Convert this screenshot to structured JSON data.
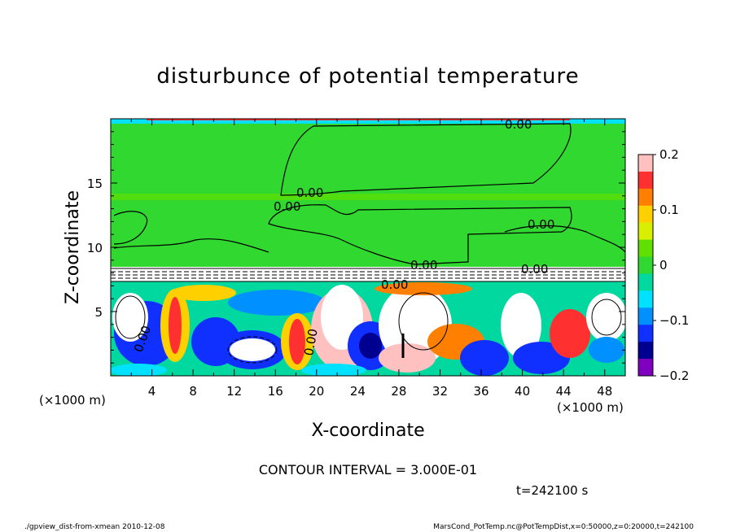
{
  "chart_data": {
    "type": "heatmap",
    "title": "disturbunce of potential temperature",
    "xlabel": "X-coordinate",
    "ylabel": "Z-coordinate",
    "x_unit": "(×1000 m)",
    "y_unit": "(×1000 m)",
    "xlim": [
      0,
      50
    ],
    "ylim": [
      0,
      20
    ],
    "x_ticks": [
      "4",
      "8",
      "12",
      "16",
      "20",
      "24",
      "28",
      "32",
      "36",
      "40",
      "44",
      "48"
    ],
    "y_ticks": [
      "5",
      "10",
      "15"
    ],
    "colorbar": {
      "min": -0.2,
      "max": 0.2,
      "ticks": [
        "0.2",
        "0.1",
        "0",
        "−0.1",
        "−0.2"
      ],
      "colors": [
        "#ffc0c0",
        "#ff3030",
        "#ff8000",
        "#ffd000",
        "#d8f000",
        "#60e000",
        "#30d830",
        "#00d8a0",
        "#00e0ff",
        "#0090ff",
        "#1030ff",
        "#000090",
        "#8000c0"
      ]
    },
    "contour_labels": [
      "0.00",
      "0.00",
      "0.00",
      "0.00",
      "0.00",
      "0.00",
      "0.00",
      "0.00",
      "0.00"
    ],
    "contour_interval_text": "CONTOUR INTERVAL = 3.000E-01",
    "time_text": "t=242100 s",
    "footer_left": "./gpview_dist-from-xmean  2010-12-08",
    "footer_right": "MarsCond_PotTemp.nc@PotTempDist,x=0:50000,z=0:20000,t=242100"
  }
}
